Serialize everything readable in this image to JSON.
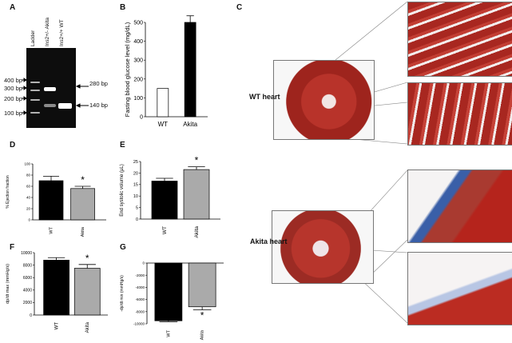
{
  "panels": {
    "A": {
      "letter": "A",
      "lanes": [
        "Ladder",
        "Ins2+/- Akita",
        "Ins2+/+ WT"
      ],
      "ladder_marks": [
        "400 bp",
        "300 bp",
        "200 bp",
        "100 bp"
      ],
      "bands": [
        "280 bp",
        "140 bp"
      ]
    },
    "B": {
      "letter": "B"
    },
    "C": {
      "letter": "C",
      "wt_label": "WT heart",
      "akita_label": "Akita heart"
    },
    "D": {
      "letter": "D"
    },
    "E": {
      "letter": "E"
    },
    "F": {
      "letter": "F"
    },
    "G": {
      "letter": "G"
    }
  },
  "colors": {
    "wt_bar": "#000000",
    "akita_bar_B": "#000000",
    "akita_bar_grey": "#aaaaaa",
    "trichrome_red": "#b02a22",
    "fibrosis_blue": "#3a5fa8"
  },
  "chart_data": [
    {
      "type": "bar",
      "panel": "B",
      "categories": [
        "WT",
        "Akita"
      ],
      "values": [
        150,
        500
      ],
      "errors": [
        0,
        35
      ],
      "fills": [
        "white",
        "black"
      ],
      "ylabel": "Fasting blood glucose level (mg/dL)",
      "ylim": [
        0,
        500
      ],
      "yticks": [
        "0",
        "100",
        "200",
        "300",
        "400",
        "500"
      ],
      "significance": "*"
    },
    {
      "type": "bar",
      "panel": "D",
      "categories": [
        "WT",
        "Akita"
      ],
      "values": [
        70,
        56
      ],
      "errors": [
        8,
        4
      ],
      "ylabel": "% Ejection fraction",
      "ylim": [
        0,
        100
      ],
      "yticks": [
        "0",
        "20",
        "40",
        "60",
        "80",
        "100"
      ],
      "significance": "*"
    },
    {
      "type": "bar",
      "panel": "E",
      "categories": [
        "WT",
        "Akita"
      ],
      "values": [
        16.5,
        21.5
      ],
      "errors": [
        1.2,
        1.2
      ],
      "ylabel": "End systolic volume (μL)",
      "ylim": [
        0,
        25
      ],
      "yticks": [
        "0",
        "5",
        "10",
        "15",
        "20",
        "25"
      ],
      "significance": "*"
    },
    {
      "type": "bar",
      "panel": "F",
      "categories": [
        "WT",
        "Akita"
      ],
      "values": [
        8800,
        7500
      ],
      "errors": [
        400,
        600
      ],
      "ylabel": "dp/dt max (mmHg/s)",
      "ylim": [
        0,
        10000
      ],
      "yticks": [
        "0",
        "2000",
        "4000",
        "6000",
        "8000",
        "10000"
      ],
      "significance": "*"
    },
    {
      "type": "bar",
      "panel": "G",
      "categories": [
        "WT",
        "Akita"
      ],
      "values": [
        -9500,
        -7200
      ],
      "errors": [
        150,
        500
      ],
      "ylabel": "-dp/dt min (mmHg/s)",
      "ylim": [
        -10000,
        0
      ],
      "yticks": [
        "0",
        "-2000",
        "-4000",
        "-6000",
        "-8000",
        "-10000"
      ],
      "significance": "*"
    }
  ]
}
